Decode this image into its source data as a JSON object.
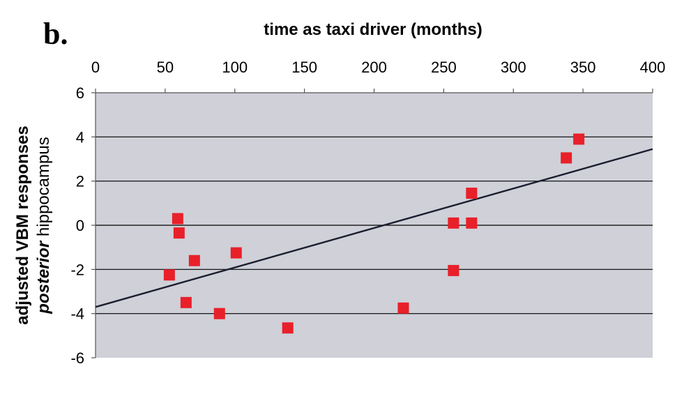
{
  "panel_label": "b.",
  "chart_data": {
    "type": "scatter",
    "title": "",
    "xlabel": "time as taxi driver (months)",
    "ylabel": {
      "line1": "adjusted VBM responses",
      "line2_italic": "posterior",
      "line2_rest": " hippocampus"
    },
    "xlim": [
      0,
      400
    ],
    "ylim": [
      -6,
      6
    ],
    "x_ticks": [
      "0",
      "50",
      "100",
      "150",
      "200",
      "250",
      "300",
      "350",
      "400"
    ],
    "y_ticks": [
      "6",
      "4",
      "2",
      "0",
      "-2",
      "-4",
      "-6"
    ],
    "x_tick_values": [
      0,
      50,
      100,
      150,
      200,
      250,
      300,
      350,
      400
    ],
    "y_tick_values": [
      6,
      4,
      2,
      0,
      -2,
      -4,
      -6
    ],
    "x_axis_position": "top",
    "grid": "horizontal",
    "background": "#cfd0d8",
    "marker_color": "#e8202a",
    "points": [
      {
        "x": 53,
        "y": -2.25
      },
      {
        "x": 59,
        "y": 0.3
      },
      {
        "x": 60,
        "y": -0.35
      },
      {
        "x": 65,
        "y": -3.5
      },
      {
        "x": 71,
        "y": -1.6
      },
      {
        "x": 89,
        "y": -4.0
      },
      {
        "x": 101,
        "y": -1.25
      },
      {
        "x": 138,
        "y": -4.65
      },
      {
        "x": 221,
        "y": -3.75
      },
      {
        "x": 257,
        "y": 0.1
      },
      {
        "x": 257,
        "y": -2.05
      },
      {
        "x": 270,
        "y": 1.45
      },
      {
        "x": 270,
        "y": 0.1
      },
      {
        "x": 338,
        "y": 3.05
      },
      {
        "x": 347,
        "y": 3.9
      }
    ],
    "trendline": {
      "x": [
        0,
        400
      ],
      "y": [
        -3.7,
        3.45
      ]
    }
  }
}
